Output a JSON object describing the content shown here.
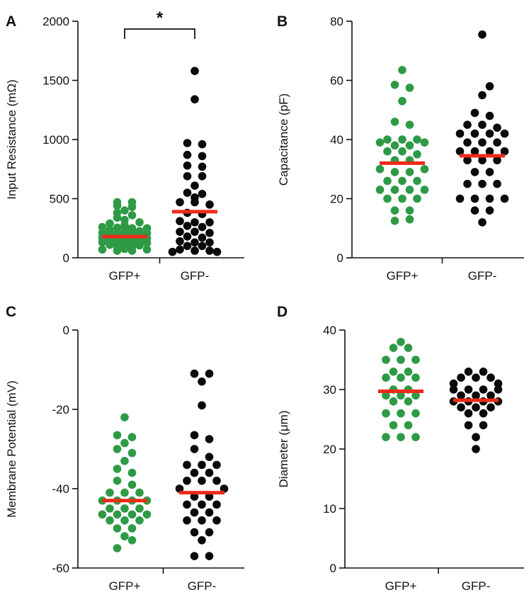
{
  "colors": {
    "gfp_pos": "#2e9a46",
    "gfp_neg": "#0a0a0a",
    "mean_bar": "#ee2a1a",
    "axis": "#111111"
  },
  "chart_data": [
    {
      "id": "A",
      "type": "scatter",
      "panel_label": "A",
      "ylabel": "Input Resistance (mΩ)",
      "ylim": [
        0,
        2000
      ],
      "yticks": [
        0,
        500,
        1000,
        1500,
        2000
      ],
      "categories": [
        "GFP+",
        "GFP-"
      ],
      "significance": "*",
      "series": [
        {
          "name": "GFP+",
          "mean": 180,
          "points": [
            [
              -1,
              470
            ],
            [
              1,
              470
            ],
            [
              -1,
              440
            ],
            [
              1,
              430
            ],
            [
              0,
              400
            ],
            [
              -1,
              380
            ],
            [
              1,
              360
            ],
            [
              -1,
              340
            ],
            [
              0,
              320
            ],
            [
              2,
              300
            ],
            [
              -2,
              290
            ],
            [
              0,
              275
            ],
            [
              -3,
              260
            ],
            [
              -1,
              255
            ],
            [
              1,
              250
            ],
            [
              3,
              250
            ],
            [
              -2,
              235
            ],
            [
              0,
              230
            ],
            [
              2,
              225
            ],
            [
              -3,
              210
            ],
            [
              -1,
              205
            ],
            [
              1,
              205
            ],
            [
              3,
              210
            ],
            [
              -2,
              190
            ],
            [
              0,
              190
            ],
            [
              2,
              185
            ],
            [
              -3,
              170
            ],
            [
              -1,
              170
            ],
            [
              1,
              165
            ],
            [
              3,
              165
            ],
            [
              -2,
              150
            ],
            [
              0,
              150
            ],
            [
              2,
              145
            ],
            [
              -3,
              130
            ],
            [
              -1,
              130
            ],
            [
              1,
              125
            ],
            [
              3,
              125
            ],
            [
              -2,
              110
            ],
            [
              0,
              110
            ],
            [
              2,
              105
            ],
            [
              -1,
              90
            ],
            [
              1,
              90
            ],
            [
              0,
              75
            ],
            [
              -3,
              70
            ],
            [
              3,
              70
            ],
            [
              -1,
              60
            ],
            [
              1,
              60
            ]
          ]
        },
        {
          "name": "GFP-",
          "mean": 390,
          "points": [
            [
              0,
              1580
            ],
            [
              0,
              1340
            ],
            [
              -1,
              970
            ],
            [
              1,
              960
            ],
            [
              -1,
              870
            ],
            [
              1,
              860
            ],
            [
              -1,
              780
            ],
            [
              1,
              770
            ],
            [
              -1,
              690
            ],
            [
              1,
              690
            ],
            [
              0,
              610
            ],
            [
              -1,
              550
            ],
            [
              1,
              540
            ],
            [
              0,
              510
            ],
            [
              -2,
              470
            ],
            [
              0,
              470
            ],
            [
              2,
              450
            ],
            [
              -1,
              380
            ],
            [
              1,
              370
            ],
            [
              -2,
              310
            ],
            [
              0,
              300
            ],
            [
              2,
              300
            ],
            [
              -1,
              270
            ],
            [
              1,
              260
            ],
            [
              -2,
              220
            ],
            [
              0,
              220
            ],
            [
              2,
              210
            ],
            [
              -1,
              180
            ],
            [
              1,
              170
            ],
            [
              -2,
              140
            ],
            [
              0,
              130
            ],
            [
              2,
              130
            ],
            [
              -1,
              100
            ],
            [
              1,
              100
            ],
            [
              -2,
              70
            ],
            [
              0,
              60
            ],
            [
              2,
              60
            ],
            [
              -3,
              50
            ],
            [
              3,
              50
            ]
          ]
        }
      ]
    },
    {
      "id": "B",
      "type": "scatter",
      "panel_label": "B",
      "ylabel": "Capacitance (pF)",
      "ylim": [
        0,
        80
      ],
      "yticks": [
        0,
        20,
        40,
        60,
        80
      ],
      "categories": [
        "GFP+",
        "GFP-"
      ],
      "series": [
        {
          "name": "GFP+",
          "mean": 32,
          "points": [
            [
              0,
              63.5
            ],
            [
              -1,
              58.5
            ],
            [
              1,
              57.5
            ],
            [
              0,
              53
            ],
            [
              -1,
              46
            ],
            [
              1,
              45
            ],
            [
              -2,
              40
            ],
            [
              0,
              40
            ],
            [
              2,
              40
            ],
            [
              -3,
              39
            ],
            [
              3,
              39
            ],
            [
              -1,
              38
            ],
            [
              1,
              38
            ],
            [
              -2,
              36
            ],
            [
              0,
              36
            ],
            [
              2,
              35
            ],
            [
              -1,
              33
            ],
            [
              1,
              33
            ],
            [
              -3,
              30
            ],
            [
              3,
              30
            ],
            [
              -1,
              29
            ],
            [
              1,
              29
            ],
            [
              -2,
              26
            ],
            [
              0,
              26
            ],
            [
              2,
              26
            ],
            [
              -3,
              23
            ],
            [
              -1,
              23
            ],
            [
              1,
              23
            ],
            [
              3,
              23
            ],
            [
              -2,
              20
            ],
            [
              0,
              20
            ],
            [
              2,
              20
            ],
            [
              -1,
              16
            ],
            [
              1,
              16
            ],
            [
              -1,
              12.5
            ],
            [
              1,
              13
            ]
          ]
        },
        {
          "name": "GFP-",
          "mean": 34.5,
          "points": [
            [
              0,
              75.5
            ],
            [
              1,
              58
            ],
            [
              0,
              55
            ],
            [
              -1,
              49
            ],
            [
              1,
              48
            ],
            [
              -2,
              45
            ],
            [
              0,
              45
            ],
            [
              2,
              44
            ],
            [
              -3,
              42
            ],
            [
              -1,
              42
            ],
            [
              1,
              42
            ],
            [
              3,
              42
            ],
            [
              -2,
              39
            ],
            [
              0,
              39
            ],
            [
              2,
              39
            ],
            [
              -3,
              36
            ],
            [
              -1,
              36
            ],
            [
              1,
              36
            ],
            [
              3,
              36
            ],
            [
              -2,
              33
            ],
            [
              0,
              33
            ],
            [
              2,
              33
            ],
            [
              -1,
              29
            ],
            [
              1,
              29
            ],
            [
              -2,
              25
            ],
            [
              0,
              25
            ],
            [
              2,
              25
            ],
            [
              -3,
              20
            ],
            [
              -1,
              20
            ],
            [
              1,
              20
            ],
            [
              3,
              20
            ],
            [
              -1,
              16
            ],
            [
              1,
              16
            ],
            [
              0,
              12
            ]
          ]
        }
      ]
    },
    {
      "id": "C",
      "type": "scatter",
      "panel_label": "C",
      "ylabel": "Membrane Potential (mV)",
      "ylim": [
        -60,
        0
      ],
      "yticks": [
        -60,
        -40,
        -20,
        0
      ],
      "categories": [
        "GFP+",
        "GFP-"
      ],
      "series": [
        {
          "name": "GFP+",
          "mean": -43,
          "points": [
            [
              0,
              -22
            ],
            [
              -1,
              -26.5
            ],
            [
              1,
              -27
            ],
            [
              0,
              -28.5
            ],
            [
              -1,
              -30
            ],
            [
              1,
              -31
            ],
            [
              0,
              -33
            ],
            [
              -1,
              -35
            ],
            [
              1,
              -36
            ],
            [
              -1,
              -38
            ],
            [
              1,
              -39
            ],
            [
              -2,
              -41
            ],
            [
              0,
              -41
            ],
            [
              2,
              -41
            ],
            [
              -3,
              -43
            ],
            [
              -1,
              -43
            ],
            [
              1,
              -43
            ],
            [
              3,
              -43
            ],
            [
              -2,
              -45
            ],
            [
              0,
              -45
            ],
            [
              2,
              -45
            ],
            [
              -3,
              -46.5
            ],
            [
              -1,
              -46.5
            ],
            [
              1,
              -46.5
            ],
            [
              3,
              -46.5
            ],
            [
              -2,
              -48
            ],
            [
              0,
              -48
            ],
            [
              2,
              -48
            ],
            [
              -1,
              -50
            ],
            [
              1,
              -50
            ],
            [
              0,
              -52
            ],
            [
              -1,
              -55
            ],
            [
              1,
              -53
            ]
          ]
        },
        {
          "name": "GFP-",
          "mean": -41,
          "points": [
            [
              -1,
              -11
            ],
            [
              1,
              -11
            ],
            [
              0,
              -13
            ],
            [
              0,
              -19
            ],
            [
              -1,
              -26.5
            ],
            [
              1,
              -27.5
            ],
            [
              -1,
              -30
            ],
            [
              1,
              -32
            ],
            [
              -2,
              -34
            ],
            [
              0,
              -34
            ],
            [
              2,
              -34
            ],
            [
              -1,
              -36
            ],
            [
              1,
              -36
            ],
            [
              -2,
              -38
            ],
            [
              0,
              -38
            ],
            [
              2,
              -38
            ],
            [
              -3,
              -40
            ],
            [
              3,
              -40
            ],
            [
              -1,
              -42
            ],
            [
              1,
              -42
            ],
            [
              -2,
              -44
            ],
            [
              0,
              -44
            ],
            [
              2,
              -44
            ],
            [
              -1,
              -46
            ],
            [
              1,
              -46
            ],
            [
              -2,
              -48
            ],
            [
              0,
              -48
            ],
            [
              2,
              -48
            ],
            [
              -1,
              -51
            ],
            [
              1,
              -51
            ],
            [
              0,
              -53
            ],
            [
              -1,
              -57
            ],
            [
              1,
              -57
            ]
          ]
        }
      ]
    },
    {
      "id": "D",
      "type": "scatter",
      "panel_label": "D",
      "ylabel": "Diameter (μm)",
      "ylim": [
        0,
        40
      ],
      "yticks": [
        0,
        10,
        20,
        30,
        40
      ],
      "categories": [
        "GFP+",
        "GFP-"
      ],
      "series": [
        {
          "name": "GFP+",
          "mean": 29.7,
          "points": [
            [
              0,
              38
            ],
            [
              -1,
              37
            ],
            [
              1,
              37
            ],
            [
              -2,
              35
            ],
            [
              0,
              35
            ],
            [
              2,
              35
            ],
            [
              -1,
              33
            ],
            [
              1,
              33
            ],
            [
              -2,
              32
            ],
            [
              0,
              32
            ],
            [
              2,
              32
            ],
            [
              -1,
              30
            ],
            [
              1,
              30
            ],
            [
              -2,
              29
            ],
            [
              0,
              29
            ],
            [
              2,
              29
            ],
            [
              -1,
              28
            ],
            [
              1,
              28
            ],
            [
              -2,
              26
            ],
            [
              0,
              26
            ],
            [
              2,
              26
            ],
            [
              -1,
              24
            ],
            [
              1,
              24
            ],
            [
              -2,
              22
            ],
            [
              0,
              22
            ],
            [
              2,
              22
            ]
          ]
        },
        {
          "name": "GFP-",
          "mean": 28.2,
          "points": [
            [
              -1,
              33
            ],
            [
              1,
              33
            ],
            [
              -2,
              32
            ],
            [
              0,
              32
            ],
            [
              2,
              32
            ],
            [
              -3,
              31
            ],
            [
              3,
              31
            ],
            [
              -3,
              30
            ],
            [
              -1,
              30
            ],
            [
              1,
              30
            ],
            [
              3,
              30
            ],
            [
              -2,
              29
            ],
            [
              0,
              29
            ],
            [
              2,
              29
            ],
            [
              -3,
              28
            ],
            [
              -1,
              28
            ],
            [
              1,
              28
            ],
            [
              3,
              28
            ],
            [
              -2,
              27
            ],
            [
              0,
              27
            ],
            [
              2,
              27
            ],
            [
              -1,
              26
            ],
            [
              1,
              26
            ],
            [
              -1,
              24
            ],
            [
              1,
              24
            ],
            [
              0,
              22
            ],
            [
              0,
              20
            ]
          ]
        }
      ]
    }
  ]
}
